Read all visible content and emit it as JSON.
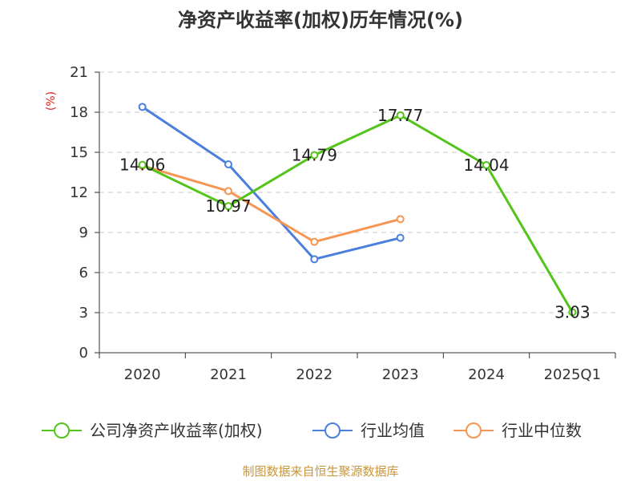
{
  "chart_data": {
    "type": "line",
    "title": "净资产收益率(加权)历年情况(%)",
    "ylabel": "(%)",
    "categories": [
      "2020",
      "2021",
      "2022",
      "2023",
      "2024",
      "2025Q1"
    ],
    "ylim": [
      0,
      21
    ],
    "yticks": [
      0,
      3,
      6,
      9,
      12,
      15,
      18,
      21
    ],
    "grid": "horizontal-dashed",
    "legend_position": "bottom",
    "series": [
      {
        "name": "公司净资产收益率(加权)",
        "color": "#52c41a",
        "values": [
          14.06,
          10.97,
          14.79,
          17.77,
          14.04,
          3.03
        ],
        "show_labels": true
      },
      {
        "name": "行业均值",
        "color": "#4a7fdc",
        "values": [
          18.4,
          14.1,
          7.0,
          8.6,
          null,
          null
        ],
        "show_labels": false
      },
      {
        "name": "行业中位数",
        "color": "#f79553",
        "values": [
          14.0,
          12.1,
          8.3,
          10.0,
          null,
          null
        ],
        "show_labels": false
      }
    ],
    "data_labels": [
      "14.06",
      "10.97",
      "14.79",
      "17.77",
      "14.04",
      "3.03"
    ]
  },
  "source": "制图数据来自恒生聚源数据库"
}
